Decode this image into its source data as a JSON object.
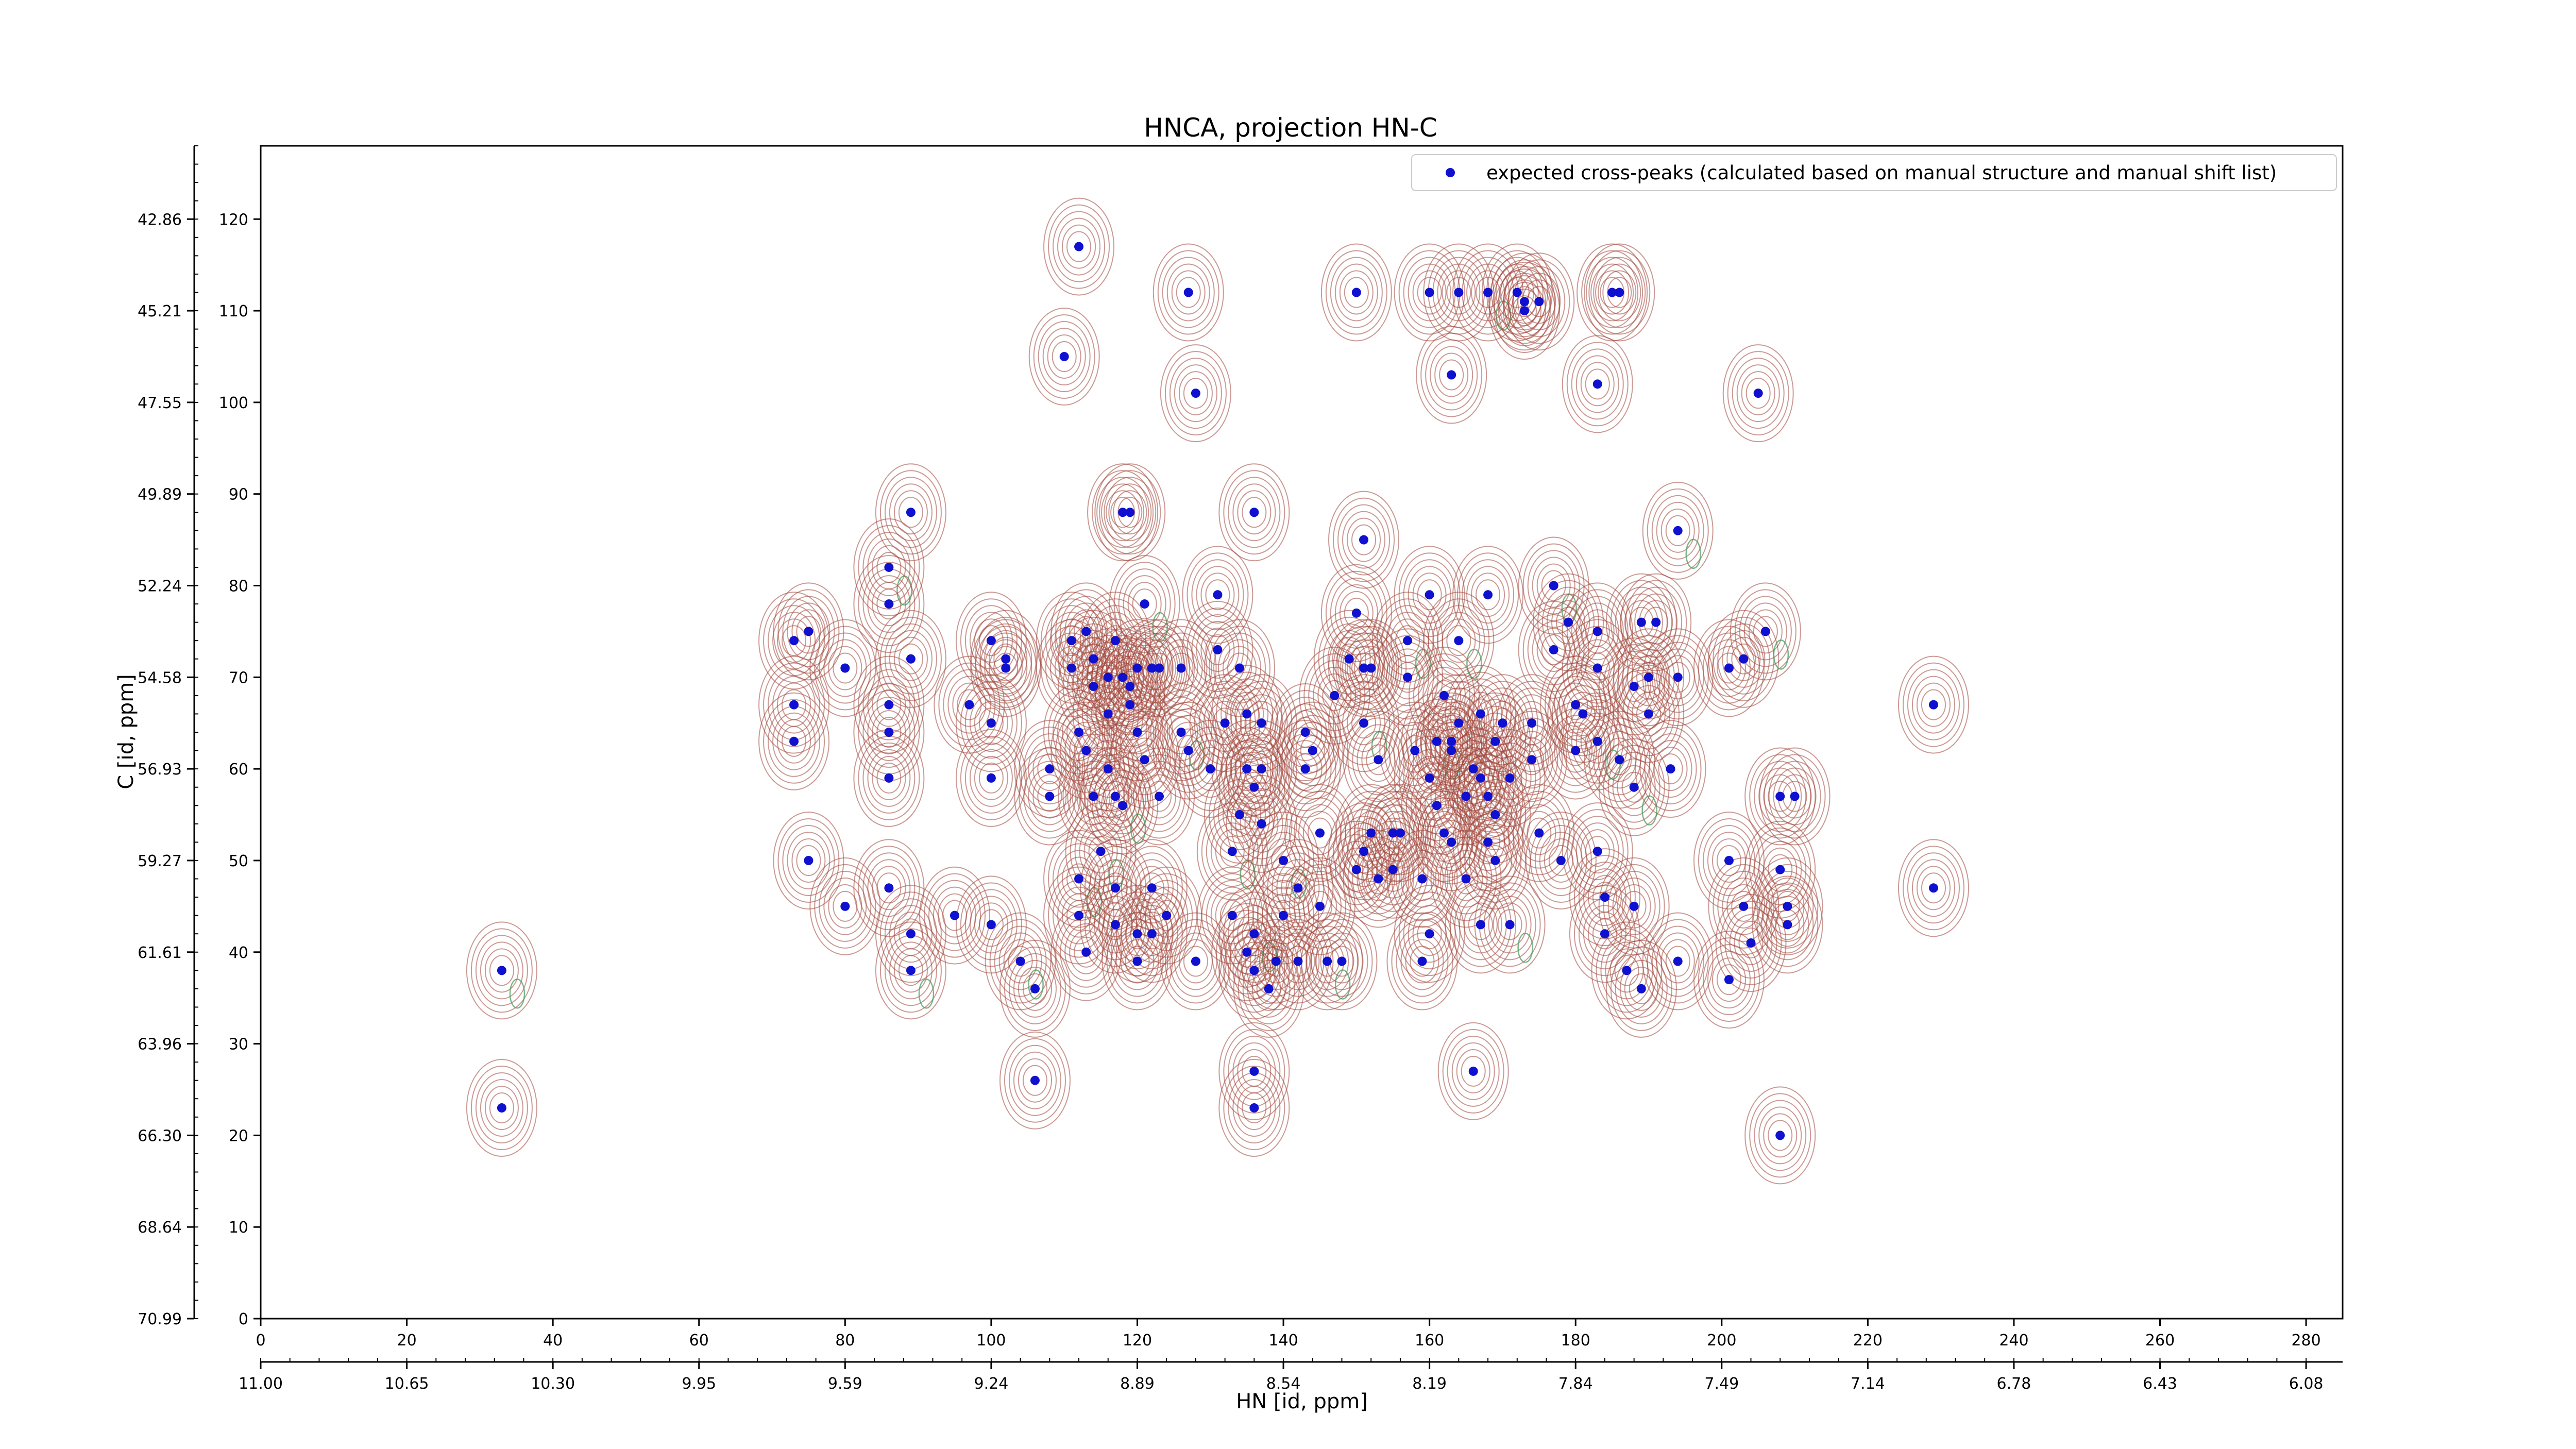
{
  "chart_data": {
    "type": "scatter",
    "title": "HNCA, projection HN-C",
    "xlabel": "HN [id, ppm]",
    "ylabel": "C [id, ppm]",
    "grid": false,
    "legend_position": "top-right",
    "xlim": [
      0,
      285
    ],
    "ylim": [
      0,
      128
    ],
    "x_ticks": [
      0,
      20,
      40,
      60,
      80,
      100,
      120,
      140,
      160,
      180,
      200,
      220,
      240,
      260,
      280
    ],
    "y_ticks": [
      0,
      10,
      20,
      30,
      40,
      50,
      60,
      70,
      80,
      90,
      100,
      110,
      120
    ],
    "x_secondary_labels": [
      "11.00",
      "10.65",
      "10.30",
      "9.95",
      "9.59",
      "9.24",
      "8.89",
      "8.54",
      "8.19",
      "7.84",
      "7.49",
      "7.14",
      "6.78",
      "6.43",
      "6.08"
    ],
    "y_secondary_labels": [
      "70.99",
      "68.64",
      "66.30",
      "63.96",
      "61.61",
      "59.27",
      "56.93",
      "54.58",
      "52.24",
      "49.89",
      "47.55",
      "45.21",
      "42.86"
    ],
    "contour_colors": {
      "positive": "#a0463a",
      "negative": "#3f9a5a"
    },
    "series": [
      {
        "name": "expected cross-peaks (calculated based on manual structure and manual shift list)",
        "color": "#1010d0",
        "marker": "o",
        "points": [
          [
            33,
            38
          ],
          [
            33,
            23
          ],
          [
            73,
            74
          ],
          [
            73,
            67
          ],
          [
            73,
            63
          ],
          [
            75,
            75
          ],
          [
            75,
            50
          ],
          [
            80,
            71
          ],
          [
            80,
            45
          ],
          [
            86,
            82
          ],
          [
            86,
            78
          ],
          [
            86,
            67
          ],
          [
            86,
            64
          ],
          [
            86,
            59
          ],
          [
            86,
            47
          ],
          [
            89,
            72
          ],
          [
            89,
            88
          ],
          [
            89,
            42
          ],
          [
            89,
            38
          ],
          [
            95,
            44
          ],
          [
            97,
            67
          ],
          [
            100,
            74
          ],
          [
            100,
            65
          ],
          [
            100,
            59
          ],
          [
            100,
            43
          ],
          [
            102,
            71
          ],
          [
            102,
            72
          ],
          [
            104,
            39
          ],
          [
            106,
            36
          ],
          [
            106,
            26
          ],
          [
            108,
            60
          ],
          [
            108,
            57
          ],
          [
            110,
            105
          ],
          [
            111,
            74
          ],
          [
            111,
            71
          ],
          [
            112,
            64
          ],
          [
            112,
            48
          ],
          [
            112,
            44
          ],
          [
            112,
            117
          ],
          [
            113,
            75
          ],
          [
            113,
            62
          ],
          [
            113,
            40
          ],
          [
            114,
            69
          ],
          [
            114,
            72
          ],
          [
            114,
            57
          ],
          [
            115,
            51
          ],
          [
            116,
            66
          ],
          [
            116,
            60
          ],
          [
            116,
            70
          ],
          [
            117,
            74
          ],
          [
            117,
            57
          ],
          [
            117,
            47
          ],
          [
            117,
            43
          ],
          [
            118,
            70
          ],
          [
            118,
            56
          ],
          [
            118,
            88
          ],
          [
            119,
            69
          ],
          [
            119,
            67
          ],
          [
            119,
            88
          ],
          [
            120,
            71
          ],
          [
            120,
            64
          ],
          [
            120,
            42
          ],
          [
            120,
            39
          ],
          [
            121,
            78
          ],
          [
            121,
            61
          ],
          [
            122,
            71
          ],
          [
            122,
            47
          ],
          [
            122,
            42
          ],
          [
            123,
            71
          ],
          [
            123,
            57
          ],
          [
            124,
            44
          ],
          [
            126,
            71
          ],
          [
            126,
            64
          ],
          [
            127,
            112
          ],
          [
            127,
            62
          ],
          [
            128,
            101
          ],
          [
            128,
            39
          ],
          [
            130,
            60
          ],
          [
            131,
            79
          ],
          [
            131,
            73
          ],
          [
            132,
            65
          ],
          [
            133,
            51
          ],
          [
            133,
            44
          ],
          [
            134,
            71
          ],
          [
            134,
            55
          ],
          [
            135,
            66
          ],
          [
            135,
            60
          ],
          [
            135,
            40
          ],
          [
            136,
            58
          ],
          [
            136,
            88
          ],
          [
            136,
            42
          ],
          [
            136,
            38
          ],
          [
            136,
            27
          ],
          [
            136,
            23
          ],
          [
            137,
            65
          ],
          [
            137,
            60
          ],
          [
            137,
            54
          ],
          [
            138,
            36
          ],
          [
            139,
            39
          ],
          [
            140,
            50
          ],
          [
            140,
            44
          ],
          [
            142,
            47
          ],
          [
            142,
            39
          ],
          [
            143,
            64
          ],
          [
            143,
            60
          ],
          [
            144,
            62
          ],
          [
            145,
            53
          ],
          [
            145,
            45
          ],
          [
            146,
            39
          ],
          [
            147,
            68
          ],
          [
            148,
            39
          ],
          [
            149,
            72
          ],
          [
            151,
            71
          ],
          [
            150,
            112
          ],
          [
            150,
            77
          ],
          [
            150,
            49
          ],
          [
            151,
            51
          ],
          [
            151,
            65
          ],
          [
            151,
            85
          ],
          [
            152,
            53
          ],
          [
            152,
            71
          ],
          [
            153,
            61
          ],
          [
            153,
            48
          ],
          [
            155,
            49
          ],
          [
            155,
            53
          ],
          [
            156,
            53
          ],
          [
            157,
            74
          ],
          [
            157,
            70
          ],
          [
            158,
            62
          ],
          [
            159,
            48
          ],
          [
            159,
            39
          ],
          [
            160,
            79
          ],
          [
            160,
            112
          ],
          [
            160,
            59
          ],
          [
            160,
            42
          ],
          [
            161,
            63
          ],
          [
            161,
            56
          ],
          [
            162,
            53
          ],
          [
            162,
            68
          ],
          [
            163,
            103
          ],
          [
            163,
            62
          ],
          [
            163,
            52
          ],
          [
            163,
            63
          ],
          [
            164,
            112
          ],
          [
            164,
            74
          ],
          [
            164,
            65
          ],
          [
            165,
            57
          ],
          [
            165,
            48
          ],
          [
            166,
            60
          ],
          [
            166,
            27
          ],
          [
            167,
            66
          ],
          [
            167,
            59
          ],
          [
            167,
            43
          ],
          [
            168,
            112
          ],
          [
            168,
            79
          ],
          [
            168,
            52
          ],
          [
            168,
            57
          ],
          [
            169,
            63
          ],
          [
            169,
            55
          ],
          [
            169,
            50
          ],
          [
            170,
            65
          ],
          [
            171,
            59
          ],
          [
            171,
            43
          ],
          [
            172,
            112
          ],
          [
            173,
            111
          ],
          [
            173,
            110
          ],
          [
            174,
            65
          ],
          [
            174,
            61
          ],
          [
            175,
            53
          ],
          [
            175,
            111
          ],
          [
            177,
            73
          ],
          [
            177,
            80
          ],
          [
            178,
            50
          ],
          [
            179,
            76
          ],
          [
            180,
            67
          ],
          [
            180,
            62
          ],
          [
            181,
            66
          ],
          [
            183,
            102
          ],
          [
            183,
            75
          ],
          [
            183,
            71
          ],
          [
            183,
            63
          ],
          [
            183,
            51
          ],
          [
            184,
            46
          ],
          [
            184,
            42
          ],
          [
            185,
            112
          ],
          [
            186,
            112
          ],
          [
            187,
            38
          ],
          [
            186,
            61
          ],
          [
            188,
            69
          ],
          [
            188,
            58
          ],
          [
            188,
            45
          ],
          [
            189,
            76
          ],
          [
            189,
            36
          ],
          [
            190,
            70
          ],
          [
            190,
            66
          ],
          [
            191,
            76
          ],
          [
            193,
            60
          ],
          [
            194,
            70
          ],
          [
            194,
            86
          ],
          [
            194,
            39
          ],
          [
            201,
            71
          ],
          [
            201,
            50
          ],
          [
            201,
            37
          ],
          [
            203,
            72
          ],
          [
            203,
            45
          ],
          [
            204,
            41
          ],
          [
            205,
            101
          ],
          [
            206,
            75
          ],
          [
            208,
            49
          ],
          [
            208,
            57
          ],
          [
            208,
            20
          ],
          [
            209,
            43
          ],
          [
            209,
            45
          ],
          [
            210,
            57
          ],
          [
            229,
            67
          ],
          [
            229,
            47
          ]
        ]
      }
    ]
  }
}
